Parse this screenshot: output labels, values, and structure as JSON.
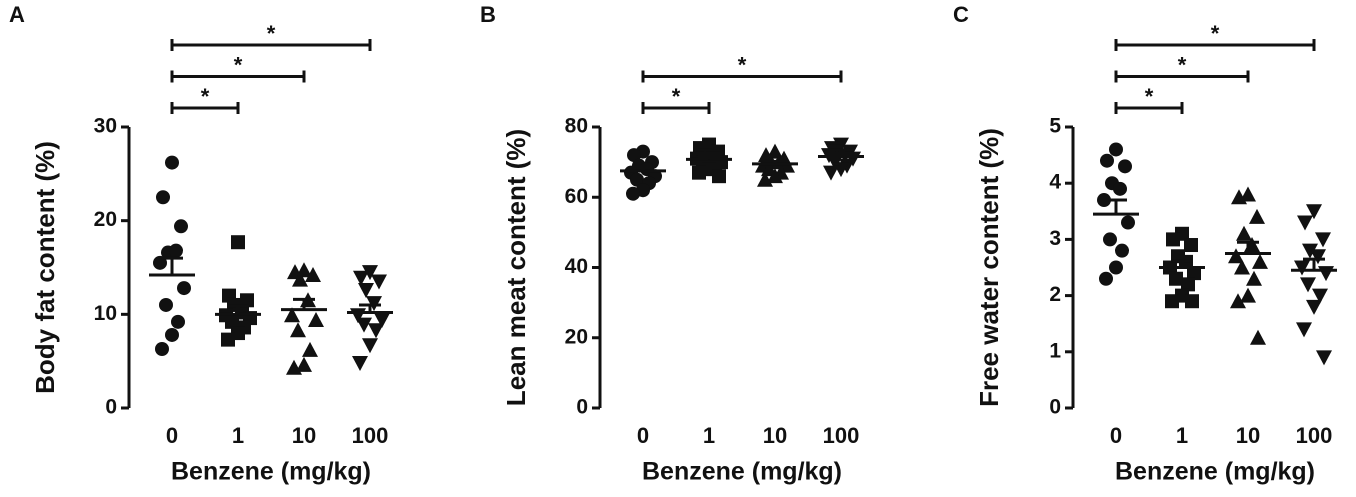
{
  "chart_data": [
    {
      "type": "strip",
      "panel": "A",
      "ylabel": "Body fat content (%)",
      "xlabel": "Benzene (mg/kg)",
      "categories": [
        "0",
        "1",
        "10",
        "100"
      ],
      "ylim": [
        0,
        30
      ],
      "yticks": [
        0,
        10,
        20,
        30
      ],
      "color": "#111111",
      "groups": [
        {
          "marker": "circle",
          "values": [
            26.2,
            22.5,
            19.4,
            16.6,
            16.8,
            15.5,
            12.8,
            11.0,
            9.2,
            7.8,
            6.3
          ],
          "mean": 14.2,
          "sem": 1.8
        },
        {
          "marker": "square",
          "values": [
            17.7,
            12.0,
            11.5,
            11.0,
            10.2,
            9.9,
            9.6,
            9.2,
            8.6,
            8.0,
            7.3
          ],
          "mean": 10.0,
          "sem": 0.9
        },
        {
          "marker": "triangle-up",
          "values": [
            14.7,
            14.5,
            14.2,
            13.7,
            11.5,
            9.9,
            9.4,
            8.3,
            6.2,
            4.6,
            4.3
          ],
          "mean": 10.5,
          "sem": 1.1
        },
        {
          "marker": "triangle-down",
          "values": [
            14.5,
            13.9,
            13.5,
            12.6,
            11.2,
            9.9,
            9.4,
            8.9,
            8.3,
            6.7,
            4.8
          ],
          "mean": 10.2,
          "sem": 0.8
        }
      ],
      "significance": [
        {
          "from": 0,
          "to": 1,
          "label": "*"
        },
        {
          "from": 0,
          "to": 2,
          "label": "*"
        },
        {
          "from": 0,
          "to": 3,
          "label": "*"
        }
      ]
    },
    {
      "type": "strip",
      "panel": "B",
      "ylabel": "Lean meat content (%)",
      "xlabel": "Benzene (mg/kg)",
      "categories": [
        "0",
        "1",
        "10",
        "100"
      ],
      "ylim": [
        0,
        80
      ],
      "yticks": [
        0,
        20,
        40,
        60,
        80
      ],
      "color": "#111111",
      "groups": [
        {
          "marker": "circle",
          "values": [
            73,
            72,
            70,
            69,
            68,
            67,
            66,
            65,
            64,
            62,
            61
          ],
          "mean": 67.5,
          "sem": 1.1
        },
        {
          "marker": "square",
          "values": [
            75,
            74,
            73,
            72,
            71,
            71,
            70,
            70,
            69,
            68,
            67,
            66
          ],
          "mean": 70.8,
          "sem": 0.8
        },
        {
          "marker": "triangle-up",
          "values": [
            73,
            72,
            71,
            70,
            70,
            69,
            69,
            68,
            67,
            66,
            65
          ],
          "mean": 69.5,
          "sem": 0.7
        },
        {
          "marker": "triangle-down",
          "values": [
            75,
            74,
            73,
            73,
            72,
            72,
            71,
            70,
            69,
            68,
            67
          ],
          "mean": 71.6,
          "sem": 0.7
        }
      ],
      "significance": [
        {
          "from": 0,
          "to": 1,
          "label": "*"
        },
        {
          "from": 0,
          "to": 3,
          "label": "*"
        }
      ]
    },
    {
      "type": "strip",
      "panel": "C",
      "ylabel": "Free water content (%)",
      "xlabel": "Benzene (mg/kg)",
      "categories": [
        "0",
        "1",
        "10",
        "100"
      ],
      "ylim": [
        0,
        5
      ],
      "yticks": [
        0,
        1,
        2,
        3,
        4,
        5
      ],
      "color": "#111111",
      "groups": [
        {
          "marker": "circle",
          "values": [
            4.6,
            4.4,
            4.3,
            4.0,
            3.9,
            3.7,
            3.3,
            3.0,
            2.8,
            2.5,
            2.3
          ],
          "mean": 3.45,
          "sem": 0.25
        },
        {
          "marker": "square",
          "values": [
            3.1,
            3.0,
            2.9,
            2.7,
            2.6,
            2.5,
            2.4,
            2.3,
            2.2,
            2.0,
            1.9,
            1.9
          ],
          "mean": 2.5,
          "sem": 0.12
        },
        {
          "marker": "triangle-up",
          "values": [
            3.8,
            3.75,
            3.4,
            3.1,
            2.9,
            2.7,
            2.6,
            2.5,
            2.3,
            2.0,
            1.9,
            1.25
          ],
          "mean": 2.75,
          "sem": 0.2
        },
        {
          "marker": "triangle-down",
          "values": [
            3.5,
            3.3,
            3.0,
            2.8,
            2.7,
            2.5,
            2.4,
            2.2,
            2.0,
            1.8,
            1.4,
            0.9
          ],
          "mean": 2.45,
          "sem": 0.2
        }
      ],
      "significance": [
        {
          "from": 0,
          "to": 1,
          "label": "*"
        },
        {
          "from": 0,
          "to": 2,
          "label": "*"
        },
        {
          "from": 0,
          "to": 3,
          "label": "*"
        }
      ]
    }
  ]
}
